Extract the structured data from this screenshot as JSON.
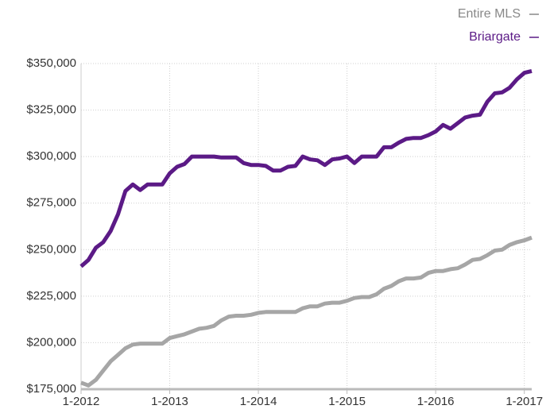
{
  "chart_data": {
    "type": "line",
    "categories": [
      "1-2012",
      null,
      null,
      null,
      null,
      null,
      null,
      null,
      null,
      null,
      null,
      null,
      "1-2013",
      null,
      null,
      null,
      null,
      null,
      null,
      null,
      null,
      null,
      null,
      null,
      "1-2014",
      null,
      null,
      null,
      null,
      null,
      null,
      null,
      null,
      null,
      null,
      null,
      "1-2015",
      null,
      null,
      null,
      null,
      null,
      null,
      null,
      null,
      null,
      null,
      null,
      "1-2016",
      null,
      null,
      null,
      null,
      null,
      null,
      null,
      null,
      null,
      null,
      null,
      "1-2017",
      null
    ],
    "series": [
      {
        "name": "Entire MLS",
        "color": "#a6a6a6",
        "values": [
          178500,
          177000,
          180000,
          185000,
          190000,
          193500,
          197000,
          199000,
          199500,
          199500,
          199500,
          199500,
          202500,
          203500,
          204500,
          206000,
          207500,
          208000,
          209000,
          212000,
          214000,
          214500,
          214500,
          215000,
          216000,
          216500,
          216500,
          216500,
          216500,
          216500,
          218500,
          219500,
          219500,
          221000,
          221500,
          221500,
          222500,
          224000,
          224500,
          224500,
          226000,
          229000,
          230500,
          233000,
          234500,
          234500,
          235000,
          237500,
          238500,
          238500,
          239500,
          240000,
          242000,
          244500,
          245000,
          247000,
          249500,
          250000,
          252500,
          254000,
          255000,
          256500
        ]
      },
      {
        "name": "Briargate",
        "color": "#5b1a86",
        "values": [
          241000,
          244500,
          251000,
          254000,
          260000,
          269000,
          281500,
          285000,
          282000,
          285000,
          285000,
          285000,
          291000,
          294500,
          296000,
          300000,
          300000,
          300000,
          300000,
          299500,
          299500,
          299500,
          296500,
          295500,
          295500,
          295000,
          292500,
          292500,
          294500,
          295000,
          300000,
          298500,
          298000,
          295500,
          298500,
          299000,
          300000,
          296500,
          300000,
          300000,
          300000,
          305000,
          305000,
          307500,
          309500,
          310000,
          310000,
          311500,
          313500,
          317000,
          315000,
          318000,
          321000,
          322000,
          322500,
          329500,
          334000,
          334500,
          337000,
          341500,
          345000,
          346000
        ]
      }
    ],
    "ylim": [
      175000,
      350000
    ],
    "yticks": [
      {
        "value": 175000,
        "label": "$175,000"
      },
      {
        "value": 200000,
        "label": "$200,000"
      },
      {
        "value": 225000,
        "label": "$225,000"
      },
      {
        "value": 250000,
        "label": "$250,000"
      },
      {
        "value": 275000,
        "label": "$275,000"
      },
      {
        "value": 300000,
        "label": "$300,000"
      },
      {
        "value": 325000,
        "label": "$325,000"
      },
      {
        "value": 350000,
        "label": "$350,000"
      }
    ],
    "grid": true,
    "legend": "top-right"
  }
}
